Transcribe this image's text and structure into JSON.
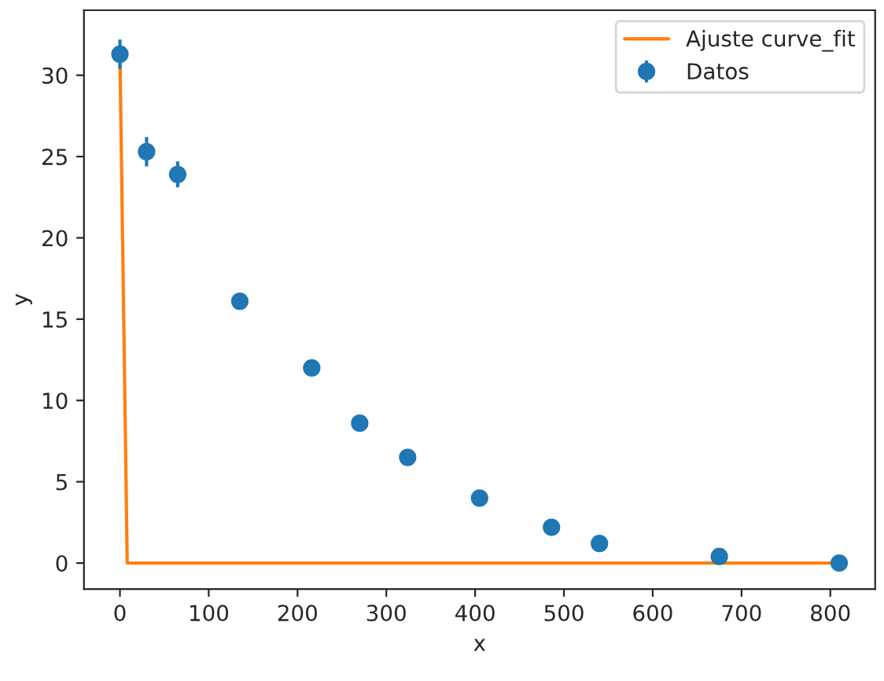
{
  "chart_data": {
    "type": "scatter",
    "xlabel": "x",
    "ylabel": "y",
    "series": [
      {
        "name": "Datos",
        "color": "#1f77b4",
        "marker": "circle",
        "x": [
          0,
          30,
          65,
          135,
          216,
          270,
          324,
          405,
          486,
          540,
          675,
          810
        ],
        "values": [
          31.3,
          25.3,
          23.9,
          16.1,
          12.0,
          8.6,
          6.5,
          4.0,
          2.2,
          1.2,
          0.4,
          0.0
        ],
        "errors": [
          0.9,
          0.9,
          0.8,
          0.4,
          0.3,
          0.2,
          0.2,
          0.1,
          0.1,
          0.1,
          0.1,
          0.1
        ]
      },
      {
        "name": "Ajuste curve_fit",
        "type": "line",
        "color": "#ff7f0e",
        "x": [
          0,
          8.2,
          810
        ],
        "values": [
          31.3,
          0.0,
          0.0
        ]
      }
    ],
    "xlim": [
      -40.5,
      850.5
    ],
    "ylim": [
      -1.6,
      34
    ],
    "xticks": [
      0,
      100,
      200,
      300,
      400,
      500,
      600,
      700,
      800
    ],
    "yticks": [
      0,
      5,
      10,
      15,
      20,
      25,
      30
    ],
    "legend": "top right",
    "grid": false
  }
}
